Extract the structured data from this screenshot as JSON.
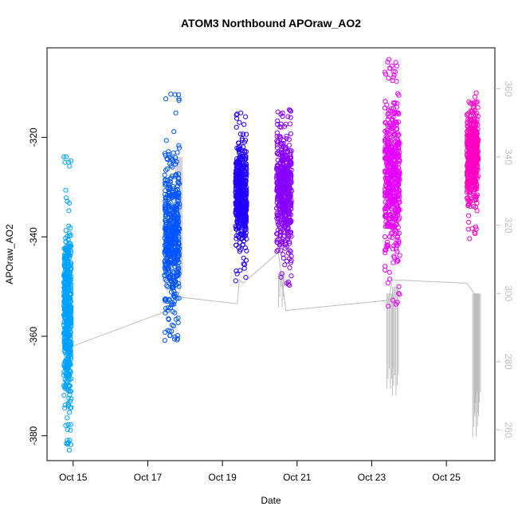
{
  "chart_data": {
    "type": "scatter",
    "title": "ATOM3 Northbound APOraw_AO2",
    "xlabel": "Date",
    "ylabel": "APOraw_AO2",
    "x_ticks": [
      "Oct 15",
      "Oct 17",
      "Oct 19",
      "Oct 21",
      "Oct 23",
      "Oct 25"
    ],
    "x_tick_days": [
      15,
      17,
      19,
      21,
      23,
      25
    ],
    "xlim_days": [
      14.3,
      26.3
    ],
    "ylim": [
      -385,
      -302
    ],
    "y_ticks": [
      -320,
      -340,
      -360,
      -380
    ],
    "y2_ticks": [
      360,
      340,
      320,
      300,
      280,
      260
    ],
    "y2lim": [
      251,
      372
    ],
    "colors": {
      "axis": "#000000",
      "secondary_axis": "#bfbfbf",
      "gray_series": "#bdbdbd"
    },
    "series": [
      {
        "day_start": 14.75,
        "day_end": 14.95,
        "y_min": -383,
        "y_max": -323,
        "y_mean": -355,
        "color": "#00a2ff"
      },
      {
        "day_start": 17.45,
        "day_end": 17.85,
        "y_min": -361,
        "y_max": -310,
        "y_mean": -340,
        "color": "#0055ff"
      },
      {
        "day_start": 19.35,
        "day_end": 19.65,
        "y_min": -349,
        "y_max": -315,
        "y_mean": -331,
        "color": "#2200ff"
      },
      {
        "day_start": 20.45,
        "day_end": 20.85,
        "y_min": -350,
        "y_max": -313,
        "y_mean": -331,
        "color": "#8800ff"
      },
      {
        "day_start": 23.35,
        "day_end": 23.75,
        "y_min": -354,
        "y_max": -304,
        "y_mean": -327,
        "color": "#e600ff"
      },
      {
        "day_start": 25.55,
        "day_end": 25.85,
        "y_min": -341,
        "y_max": -311,
        "y_mean": -324,
        "color": "#ff00c3"
      }
    ],
    "secondary_line": [
      [
        14.85,
        284
      ],
      [
        17.55,
        295
      ],
      [
        17.8,
        299
      ],
      [
        19.4,
        297
      ],
      [
        19.45,
        304
      ],
      [
        19.55,
        303
      ],
      [
        20.5,
        312
      ],
      [
        20.7,
        295
      ],
      [
        23.45,
        298
      ],
      [
        23.55,
        304
      ],
      [
        25.55,
        303
      ],
      [
        25.75,
        300
      ]
    ],
    "secondary_drops": [
      {
        "day": 23.5,
        "y_top": 300,
        "y_bottom": 272
      },
      {
        "day": 23.65,
        "y_top": 302,
        "y_bottom": 270
      },
      {
        "day": 20.6,
        "y_top": 306,
        "y_bottom": 296
      },
      {
        "day": 25.8,
        "y_top": 300,
        "y_bottom": 258
      },
      {
        "day": 25.85,
        "y_top": 300,
        "y_bottom": 265
      },
      {
        "day": 17.85,
        "y_top": 340,
        "y_bottom": 300
      }
    ]
  }
}
